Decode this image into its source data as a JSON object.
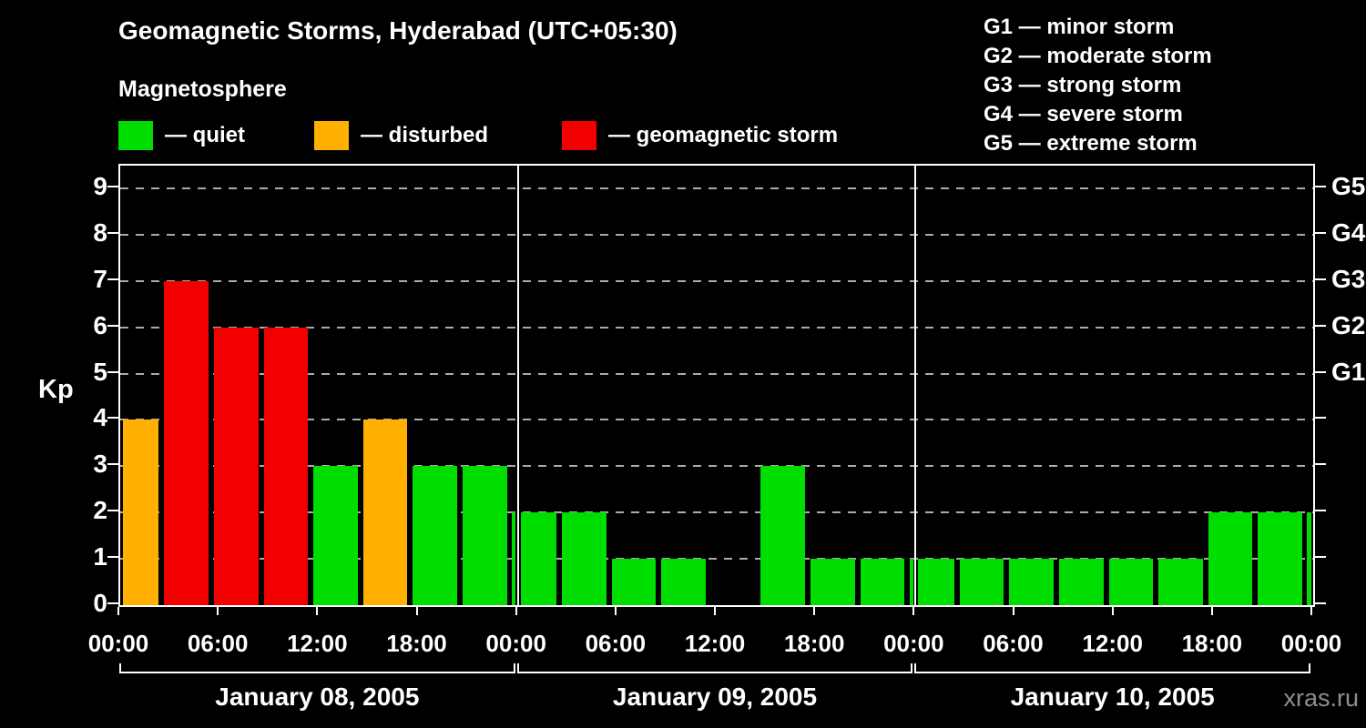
{
  "header": {
    "title": "Geomagnetic Storms, Hyderabad (UTC+05:30)",
    "subtitle": "Magnetosphere"
  },
  "legend": {
    "items": [
      {
        "key": "quiet",
        "label": "— quiet",
        "color": "#00dd00"
      },
      {
        "key": "disturbed",
        "label": "— disturbed",
        "color": "#ffb000"
      },
      {
        "key": "storm",
        "label": "— geomagnetic storm",
        "color": "#f20000"
      }
    ]
  },
  "storm_scale": {
    "items": [
      "G1 — minor storm",
      "G2 — moderate storm",
      "G3 — strong storm",
      "G4 — severe storm",
      "G5 — extreme storm"
    ]
  },
  "axes": {
    "y_title": "Kp",
    "y_ticks": [
      0,
      1,
      2,
      3,
      4,
      5,
      6,
      7,
      8,
      9
    ],
    "right_labels": [
      {
        "kp": 5,
        "label": "G1"
      },
      {
        "kp": 6,
        "label": "G2"
      },
      {
        "kp": 7,
        "label": "G3"
      },
      {
        "kp": 8,
        "label": "G4"
      },
      {
        "kp": 9,
        "label": "G5"
      }
    ],
    "x_tick_hours": [
      0,
      6,
      12,
      18
    ],
    "x_tick_labels": [
      "00:00",
      "06:00",
      "12:00",
      "18:00"
    ],
    "x_final_label": "00:00"
  },
  "watermark": "xras.ru",
  "chart_data": {
    "type": "bar",
    "title": "Geomagnetic Storms, Hyderabad (UTC+05:30)",
    "ylabel": "Kp",
    "ylim": [
      0,
      9.5
    ],
    "grid": "dashed horizontal at each integer Kp 1-9",
    "note": "3-hour Kp index bars; local time UTC+05:30, so 3-hour UTC slots are shifted and clipped at local-day boundaries",
    "color_rules": {
      "quiet_kp_max": 3,
      "disturbed_kp_max": 4,
      "storm_kp_min": 5
    },
    "days": [
      {
        "date": "January 08, 2005",
        "segments": [
          {
            "hours": 2.5,
            "kp": 4
          },
          {
            "hours": 3,
            "kp": 7
          },
          {
            "hours": 3,
            "kp": 6
          },
          {
            "hours": 3,
            "kp": 6
          },
          {
            "hours": 3,
            "kp": 3
          },
          {
            "hours": 3,
            "kp": 4
          },
          {
            "hours": 3,
            "kp": 3
          },
          {
            "hours": 3,
            "kp": 3
          },
          {
            "hours": 0.5,
            "kp": 2
          }
        ]
      },
      {
        "date": "January 09, 2005",
        "segments": [
          {
            "hours": 2.5,
            "kp": 2
          },
          {
            "hours": 3,
            "kp": 2
          },
          {
            "hours": 3,
            "kp": 1
          },
          {
            "hours": 3,
            "kp": 1
          },
          {
            "hours": 3,
            "kp": 0
          },
          {
            "hours": 3,
            "kp": 3
          },
          {
            "hours": 3,
            "kp": 1
          },
          {
            "hours": 3,
            "kp": 1
          },
          {
            "hours": 0.5,
            "kp": 1
          }
        ]
      },
      {
        "date": "January 10, 2005",
        "segments": [
          {
            "hours": 2.5,
            "kp": 1
          },
          {
            "hours": 3,
            "kp": 1
          },
          {
            "hours": 3,
            "kp": 1
          },
          {
            "hours": 3,
            "kp": 1
          },
          {
            "hours": 3,
            "kp": 1
          },
          {
            "hours": 3,
            "kp": 1
          },
          {
            "hours": 3,
            "kp": 2
          },
          {
            "hours": 3,
            "kp": 2
          },
          {
            "hours": 0.5,
            "kp": 2
          }
        ]
      }
    ]
  }
}
